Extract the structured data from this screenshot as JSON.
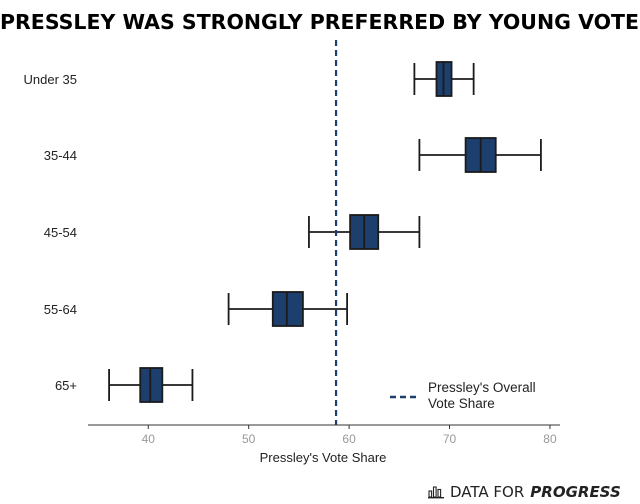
{
  "chart_data": {
    "type": "box",
    "title": "PRESSLEY WAS STRONGLY PREFERRED BY YOUNG VOTERS",
    "xlabel": "Pressley's Vote Share",
    "ylabel": "",
    "xlim": [
      34,
      81
    ],
    "x_ticks": [
      40,
      50,
      60,
      70,
      80
    ],
    "categories": [
      "Under 35",
      "35-44",
      "45-54",
      "55-64",
      "65+"
    ],
    "boxes": [
      {
        "category": "Under 35",
        "whisker_low": 66.5,
        "q1": 68.7,
        "median": 69.4,
        "q3": 70.2,
        "whisker_high": 72.4
      },
      {
        "category": "35-44",
        "whisker_low": 67.0,
        "q1": 71.6,
        "median": 73.1,
        "q3": 74.6,
        "whisker_high": 79.1
      },
      {
        "category": "45-54",
        "whisker_low": 56.0,
        "q1": 60.1,
        "median": 61.5,
        "q3": 62.9,
        "whisker_high": 67.0
      },
      {
        "category": "55-64",
        "whisker_low": 48.0,
        "q1": 52.4,
        "median": 53.8,
        "q3": 55.4,
        "whisker_high": 59.8
      },
      {
        "category": "65+",
        "whisker_low": 36.1,
        "q1": 39.2,
        "median": 40.2,
        "q3": 41.4,
        "whisker_high": 44.4
      }
    ],
    "reference_line": {
      "label": "Pressley's Overall Vote Share",
      "value": 58.7,
      "style": "dashed"
    },
    "legend_position": "bottom-right",
    "box_color": "#1d3f6e",
    "line_color": "#1b1b1b",
    "reference_color": "#1d3f6e",
    "grid": false
  },
  "legend": {
    "line1": "Pressley's Overall",
    "line2": "Vote Share"
  },
  "footer": {
    "brand_regular": "DATA FOR",
    "brand_strong": "PROGRESS",
    "logo_icon": "bar-chart-logo-icon"
  }
}
